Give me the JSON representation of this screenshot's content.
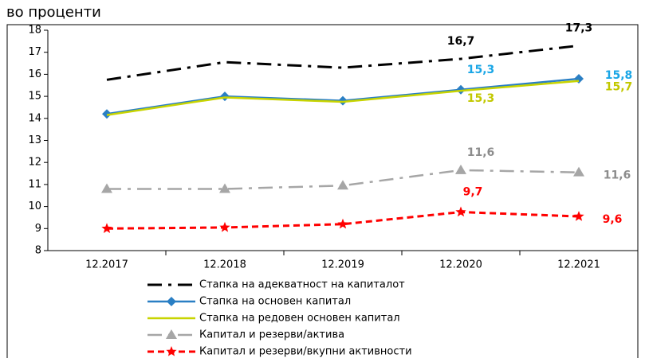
{
  "chart_data": {
    "type": "line",
    "title": "во проценти",
    "categories": [
      "12.2017",
      "12.2018",
      "12.2019",
      "12.2020",
      "12.2021"
    ],
    "ylim": [
      8,
      18
    ],
    "yticks": [
      8,
      9,
      10,
      11,
      12,
      13,
      14,
      15,
      16,
      17,
      18
    ],
    "series": [
      {
        "name": "Стапка на адекватност на капиталот",
        "color": "#000000",
        "dash": "dashdot",
        "label_color": "#000000",
        "values": [
          15.75,
          16.55,
          16.3,
          16.7,
          17.3
        ],
        "value_labels": [
          null,
          null,
          null,
          "16,7",
          "17,3"
        ]
      },
      {
        "name": "Стапка на основен капитал",
        "color": "#2a7fc4",
        "marker": "diamond",
        "label_color": "#1aa6e6",
        "values": [
          14.2,
          15.0,
          14.8,
          15.3,
          15.8
        ],
        "value_labels": [
          null,
          null,
          null,
          "15,3",
          "15,8"
        ]
      },
      {
        "name": "Стапка на редовен основен капитал",
        "color": "#c8d400",
        "label_color": "#c2c800",
        "values": [
          14.15,
          14.95,
          14.75,
          15.25,
          15.7
        ],
        "value_labels": [
          null,
          null,
          null,
          "15,3",
          "15,7"
        ]
      },
      {
        "name": "Капитал и резерви/актива",
        "color": "#a6a6a6",
        "dash": "dashdot",
        "marker": "triangle",
        "label_color": "#8c8c8c",
        "values": [
          10.8,
          10.8,
          10.95,
          11.65,
          11.55
        ],
        "value_labels": [
          null,
          null,
          null,
          "11,6",
          "11,6"
        ]
      },
      {
        "name": "Капитал и резерви/вкупни активности",
        "color": "#ff0000",
        "dash": "dash",
        "marker": "star",
        "label_color": "#ff0000",
        "values": [
          9.0,
          9.05,
          9.2,
          9.75,
          9.55
        ],
        "value_labels": [
          null,
          null,
          null,
          "9,7",
          "9,6"
        ]
      }
    ]
  }
}
